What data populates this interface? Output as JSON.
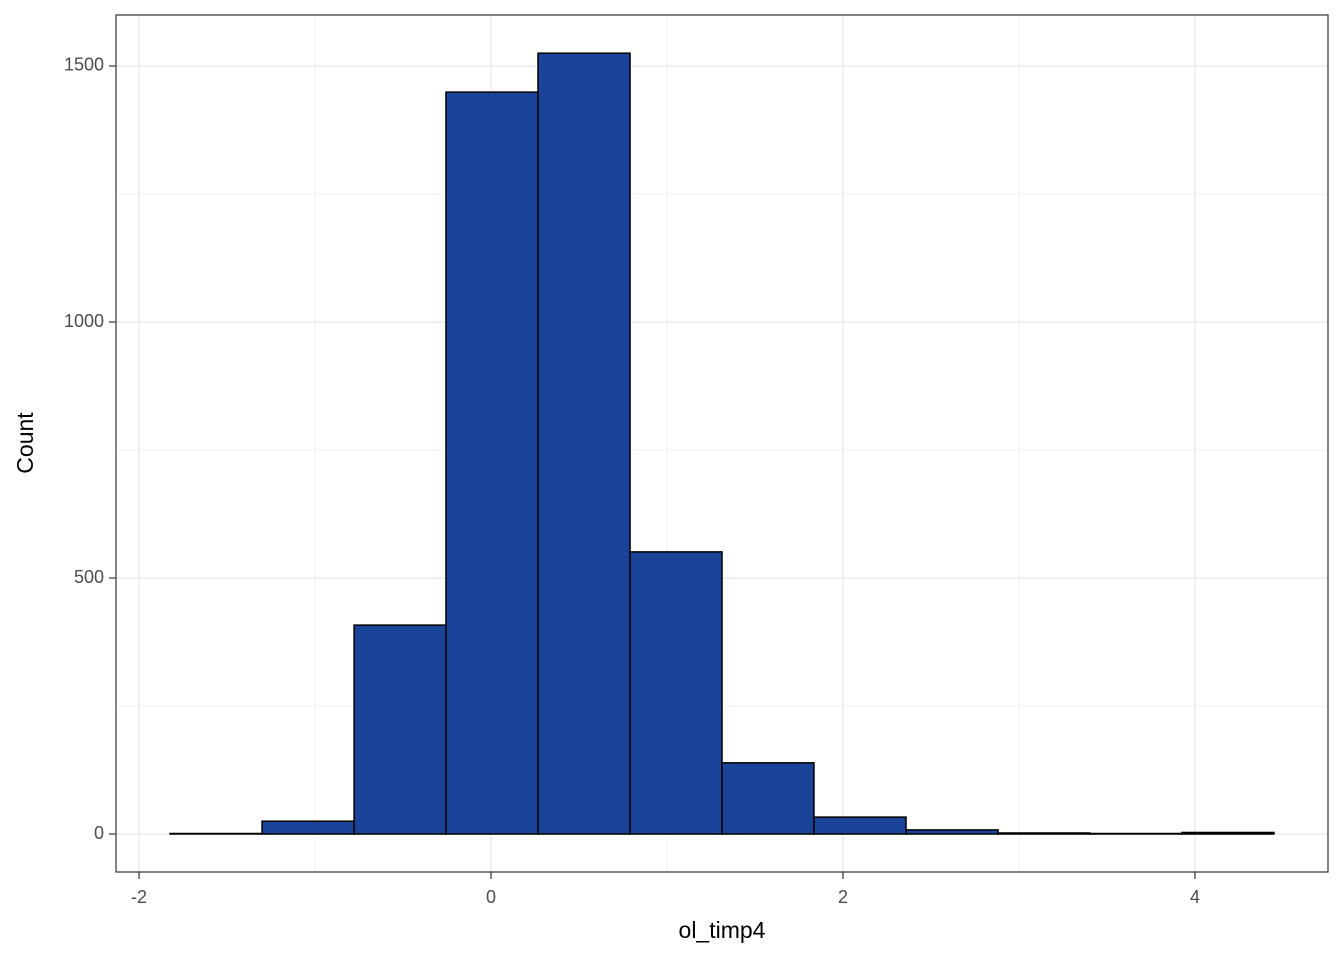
{
  "chart_data": {
    "type": "histogram",
    "x_label": "ol_timp4",
    "y_label": "Count",
    "bins": [
      -1.824,
      -1.301,
      -0.778,
      -0.256,
      0.267,
      0.79,
      1.3125,
      1.835,
      2.358,
      2.881,
      3.403,
      3.926,
      4.449
    ],
    "counts": [
      1,
      25,
      408,
      1449,
      1525,
      551,
      139,
      33,
      8,
      2,
      1,
      3
    ],
    "color": "#1a4499",
    "edge_color": "#000000",
    "xlim": [
      -2.131,
      4.756
    ],
    "ylim": [
      -74.2,
      1599.6
    ],
    "xticks": [
      -2,
      0,
      2,
      4
    ],
    "yticks": [
      0,
      500,
      1000,
      1500
    ],
    "x_minor_ticks": [
      -1,
      1,
      3
    ],
    "y_minor_ticks": [
      250,
      750,
      1250
    ],
    "grid": true
  }
}
